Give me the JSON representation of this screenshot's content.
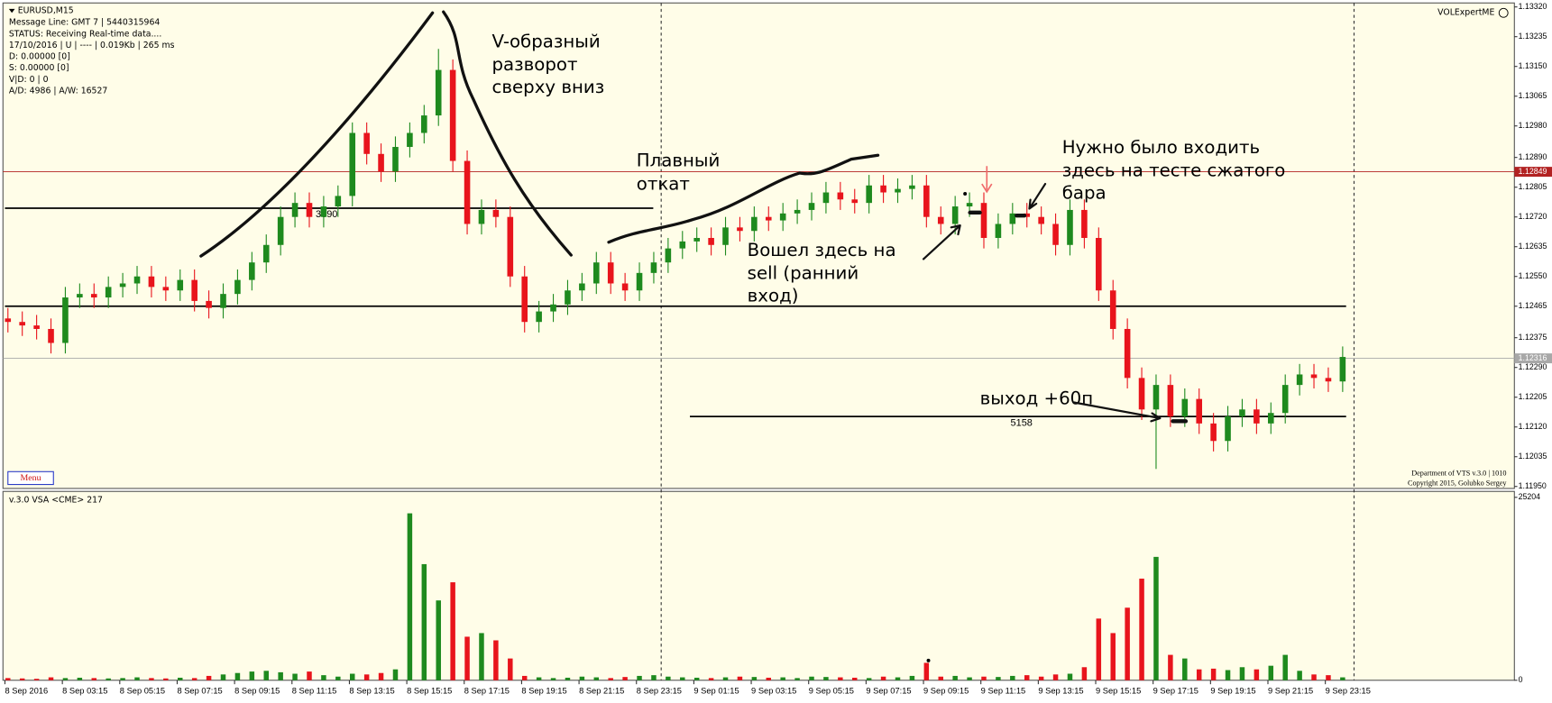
{
  "chart_data": [
    {
      "type": "candlestick",
      "title": "EURUSD,M15",
      "info": [
        "Message Line: GMT 7 | 5440315964",
        "STATUS:  Receiving Real-time data....",
        "17/10/2016 | U | ---- | 0.019Kb | 265 ms",
        "D: 0.00000  [0]",
        "S: 0.00000  [0]",
        "V|D: 0 | 0",
        "A/D: 4986 | A/W: 16527"
      ],
      "expert": "VOLExpertME",
      "footer": [
        "Department of VTS  v.3.0 | 1010",
        "Copyright 2015, Golubko Sergey"
      ],
      "menu": "Menu",
      "annotations": [
        [
          "V-образный",
          "разворот",
          "сверху вниз"
        ],
        [
          "Плавный",
          "откат"
        ],
        [
          "Нужно было входить",
          "здесь на тесте сжатого",
          "бара"
        ],
        [
          "Вошел здесь на",
          "sell (ранний",
          "вход)"
        ],
        [
          "выход +60п"
        ]
      ],
      "categories": [
        "8 Sep 2016",
        null,
        null,
        null,
        "8 Sep 03:15",
        null,
        null,
        null,
        "8 Sep 05:15",
        null,
        null,
        null,
        "8 Sep 07:15",
        null,
        null,
        null,
        "8 Sep 09:15",
        null,
        null,
        null,
        "8 Sep 11:15",
        null,
        null,
        null,
        "8 Sep 13:15",
        null,
        null,
        null,
        "8 Sep 15:15",
        null,
        null,
        null,
        "8 Sep 17:15",
        null,
        null,
        null,
        "8 Sep 19:15",
        null,
        null,
        null,
        "8 Sep 21:15",
        null,
        null,
        null,
        "8 Sep 23:15",
        null,
        null,
        null,
        "9 Sep 01:15",
        null,
        null,
        null,
        "9 Sep 03:15",
        null,
        null,
        null,
        "9 Sep 05:15",
        null,
        null,
        null,
        "9 Sep 07:15",
        null,
        null,
        null,
        "9 Sep 09:15",
        null,
        null,
        null,
        "9 Sep 11:15",
        null,
        null,
        null,
        "9 Sep 13:15",
        null,
        null,
        null,
        "9 Sep 15:15",
        null,
        null,
        null,
        "9 Sep 17:15",
        null,
        null,
        null,
        "9 Sep 19:15",
        null,
        null,
        null,
        "9 Sep 21:15",
        null,
        null,
        null,
        "9 Sep 23:15",
        null
      ],
      "open": [
        1.1243,
        1.1242,
        1.1241,
        1.124,
        1.1236,
        1.1249,
        1.125,
        1.1249,
        1.1252,
        1.1253,
        1.1255,
        1.1252,
        1.1251,
        1.1254,
        1.1248,
        1.1246,
        1.125,
        1.1254,
        1.1259,
        1.1264,
        1.1272,
        1.1276,
        1.1272,
        1.1275,
        1.1278,
        1.1296,
        1.129,
        1.1285,
        1.1292,
        1.1296,
        1.1301,
        1.1314,
        1.1288,
        1.127,
        1.1274,
        1.1272,
        1.1255,
        1.1242,
        1.1245,
        1.1247,
        1.1251,
        1.1253,
        1.1259,
        1.1253,
        1.1251,
        1.1256,
        1.1259,
        1.1263,
        1.1265,
        1.1266,
        1.1264,
        1.1269,
        1.1268,
        1.1272,
        1.1271,
        1.1273,
        1.1274,
        1.1276,
        1.1279,
        1.1277,
        1.1276,
        1.1281,
        1.1279,
        1.128,
        1.1281,
        1.1272,
        1.127,
        1.1275,
        1.1276,
        1.1266,
        1.127,
        1.1273,
        1.1272,
        1.127,
        1.1264,
        1.1274,
        1.1266,
        1.1251,
        1.124,
        1.1226,
        1.1217,
        1.1224,
        1.1215,
        1.122,
        1.1213,
        1.1208,
        1.1215,
        1.1217,
        1.1213,
        1.1216,
        1.1224,
        1.1227,
        1.1226,
        1.1225
      ],
      "high": [
        1.1246,
        1.1245,
        1.1244,
        1.1243,
        1.1252,
        1.1253,
        1.1253,
        1.1255,
        1.1256,
        1.1258,
        1.1258,
        1.1255,
        1.1257,
        1.1257,
        1.1251,
        1.1253,
        1.1257,
        1.1262,
        1.1267,
        1.1275,
        1.1279,
        1.1279,
        1.1278,
        1.1281,
        1.1299,
        1.1299,
        1.1293,
        1.1295,
        1.1299,
        1.1304,
        1.132,
        1.1317,
        1.1291,
        1.1277,
        1.1277,
        1.1275,
        1.1258,
        1.1248,
        1.125,
        1.1254,
        1.1256,
        1.1262,
        1.1262,
        1.1256,
        1.1259,
        1.1262,
        1.1266,
        1.1268,
        1.1269,
        1.1269,
        1.1272,
        1.1272,
        1.1275,
        1.1275,
        1.1276,
        1.1277,
        1.1279,
        1.1282,
        1.1282,
        1.128,
        1.1284,
        1.1284,
        1.1283,
        1.1284,
        1.1284,
        1.1275,
        1.1278,
        1.1279,
        1.1279,
        1.1273,
        1.1276,
        1.1276,
        1.1275,
        1.1273,
        1.1277,
        1.1277,
        1.1269,
        1.1254,
        1.1243,
        1.1229,
        1.1227,
        1.1227,
        1.1223,
        1.1223,
        1.1216,
        1.1218,
        1.122,
        1.122,
        1.1219,
        1.1227,
        1.123,
        1.123,
        1.1229,
        1.1235
      ],
      "low": [
        1.1239,
        1.1238,
        1.1237,
        1.1233,
        1.1233,
        1.1246,
        1.1246,
        1.1246,
        1.1249,
        1.125,
        1.1249,
        1.1248,
        1.1248,
        1.1245,
        1.1243,
        1.1243,
        1.1247,
        1.1251,
        1.1256,
        1.1261,
        1.1269,
        1.1269,
        1.1269,
        1.1272,
        1.1275,
        1.1287,
        1.1282,
        1.1282,
        1.1289,
        1.1293,
        1.1298,
        1.1285,
        1.1267,
        1.1267,
        1.1269,
        1.1252,
        1.1239,
        1.1239,
        1.1242,
        1.1244,
        1.1248,
        1.125,
        1.125,
        1.1248,
        1.1248,
        1.1253,
        1.1256,
        1.126,
        1.1262,
        1.1261,
        1.1261,
        1.1265,
        1.1265,
        1.1268,
        1.1268,
        1.127,
        1.1271,
        1.1273,
        1.1274,
        1.1273,
        1.1273,
        1.1276,
        1.1276,
        1.1277,
        1.1269,
        1.1267,
        1.1267,
        1.1272,
        1.1263,
        1.1263,
        1.1267,
        1.1269,
        1.1267,
        1.1261,
        1.1261,
        1.1263,
        1.1248,
        1.1237,
        1.1223,
        1.1214,
        1.12,
        1.1212,
        1.1212,
        1.121,
        1.1205,
        1.1205,
        1.1212,
        1.121,
        1.121,
        1.1213,
        1.1221,
        1.1223,
        1.1222,
        1.1222
      ],
      "close": [
        1.1242,
        1.1241,
        1.124,
        1.1236,
        1.1249,
        1.125,
        1.1249,
        1.1252,
        1.1253,
        1.1255,
        1.1252,
        1.1251,
        1.1254,
        1.1248,
        1.1246,
        1.125,
        1.1254,
        1.1259,
        1.1264,
        1.1272,
        1.1276,
        1.1272,
        1.1275,
        1.1278,
        1.1296,
        1.129,
        1.1285,
        1.1292,
        1.1296,
        1.1301,
        1.1314,
        1.1288,
        1.127,
        1.1274,
        1.1272,
        1.1255,
        1.1242,
        1.1245,
        1.1247,
        1.1251,
        1.1253,
        1.1259,
        1.1253,
        1.1251,
        1.1256,
        1.1259,
        1.1263,
        1.1265,
        1.1266,
        1.1264,
        1.1269,
        1.1268,
        1.1272,
        1.1271,
        1.1273,
        1.1274,
        1.1276,
        1.1279,
        1.1277,
        1.1276,
        1.1281,
        1.1279,
        1.128,
        1.1281,
        1.1272,
        1.127,
        1.1275,
        1.1276,
        1.1266,
        1.127,
        1.1273,
        1.1272,
        1.127,
        1.1264,
        1.1274,
        1.1266,
        1.1251,
        1.124,
        1.1226,
        1.1217,
        1.1224,
        1.1215,
        1.122,
        1.1213,
        1.1208,
        1.1215,
        1.1217,
        1.1213,
        1.1216,
        1.1224,
        1.1227,
        1.1226,
        1.1225,
        1.1232
      ],
      "up_color": "#1e8a1e",
      "down_color": "#e8141c",
      "ylim": [
        1.1195,
        1.1332
      ],
      "yticks": [
        {
          "value": 1.1332,
          "label": "1.13320"
        },
        {
          "value": 1.13235,
          "label": "1.13235"
        },
        {
          "value": 1.1315,
          "label": "1.13150"
        },
        {
          "value": 1.13065,
          "label": "1.13065"
        },
        {
          "value": 1.1298,
          "label": "1.12980"
        },
        {
          "value": 1.1289,
          "label": "1.12890"
        },
        {
          "value": 1.12805,
          "label": "1.12805"
        },
        {
          "value": 1.1272,
          "label": "1.12720"
        },
        {
          "value": 1.12635,
          "label": "1.12635"
        },
        {
          "value": 1.1255,
          "label": "1.12550"
        },
        {
          "value": 1.12465,
          "label": "1.12465"
        },
        {
          "value": 1.12375,
          "label": "1.12375"
        },
        {
          "value": 1.1229,
          "label": "1.12290"
        },
        {
          "value": 1.12205,
          "label": "1.12205"
        },
        {
          "value": 1.1212,
          "label": "1.12120"
        },
        {
          "value": 1.12035,
          "label": "1.12035"
        },
        {
          "value": 1.1195,
          "label": "1.11950"
        }
      ],
      "levels": [
        {
          "value": 1.12745,
          "label": "3890"
        },
        {
          "value": 1.12465
        },
        {
          "value": 1.1215,
          "label": "5158"
        }
      ],
      "price_tags": [
        {
          "value": 1.12849,
          "label": "1.12849",
          "color": "#b22222"
        },
        {
          "value": 1.12316,
          "label": "1.12316",
          "color": "#a8a8a8"
        }
      ]
    },
    {
      "type": "bar",
      "title": "v.3.0 VSA <CME> 217",
      "values": [
        300,
        250,
        200,
        400,
        300,
        350,
        300,
        250,
        300,
        400,
        300,
        250,
        350,
        300,
        600,
        800,
        1000,
        1200,
        1300,
        1100,
        900,
        1200,
        700,
        500,
        900,
        800,
        1000,
        1500,
        23000,
        16000,
        11000,
        13500,
        6000,
        6500,
        5500,
        3000,
        600,
        400,
        300,
        350,
        500,
        400,
        300,
        450,
        600,
        700,
        500,
        400,
        350,
        300,
        400,
        500,
        450,
        350,
        400,
        300,
        500,
        450,
        400,
        350,
        300,
        500,
        400,
        600,
        2400,
        500,
        600,
        400,
        500,
        450,
        600,
        700,
        500,
        800,
        900,
        1800,
        8500,
        6500,
        10000,
        14000,
        17000,
        3500,
        3000,
        1500,
        1600,
        1400,
        1800,
        1500,
        2000,
        3500,
        1300,
        800,
        700,
        400
      ],
      "ylim": [
        0,
        25204
      ],
      "yticks": [
        25204,
        0
      ]
    }
  ]
}
